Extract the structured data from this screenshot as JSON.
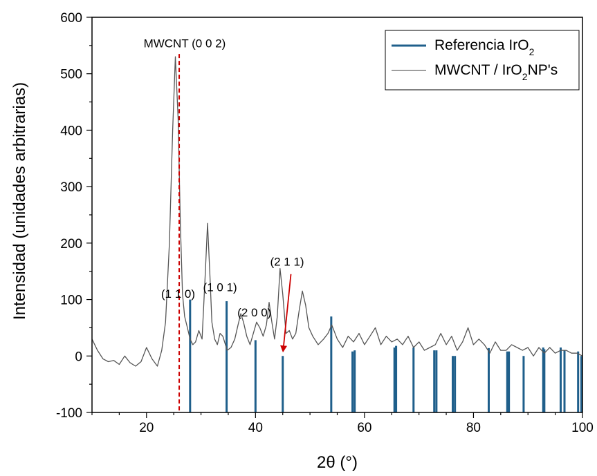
{
  "chart_data": {
    "type": "line",
    "xlabel": "2θ (°)",
    "ylabel": "Intensidad (unidades arbitrarias)",
    "xlim": [
      10,
      100
    ],
    "ylim": [
      -100,
      600
    ],
    "xticks": [
      20,
      40,
      60,
      80,
      100
    ],
    "yticks": [
      -100,
      0,
      100,
      200,
      300,
      400,
      500,
      600
    ],
    "grid": false,
    "legend_position": "top-right",
    "legend": {
      "items": [
        {
          "label_main": "Referencia IrO",
          "label_sub": "2",
          "label_tail": "",
          "color": "#1f5f8b",
          "style": "thick"
        },
        {
          "label_main": "MWCNT / IrO",
          "label_sub": "2",
          "label_tail": "NP's",
          "color": "#7f7f7f",
          "style": "thin"
        }
      ]
    },
    "series": [
      {
        "name": "MWCNT / IrO2NP's",
        "color": "#555555",
        "x": [
          10,
          11,
          12,
          13,
          14,
          15,
          16,
          17,
          18,
          19,
          20,
          21,
          22,
          22.8,
          23.5,
          24.2,
          24.8,
          25.3,
          25.8,
          26.2,
          26.6,
          27.0,
          27.5,
          28.0,
          28.5,
          29.0,
          29.6,
          30.2,
          30.8,
          31.2,
          31.6,
          32.0,
          32.5,
          33.0,
          33.5,
          34.0,
          34.8,
          35.5,
          36.2,
          36.8,
          37.3,
          37.8,
          38.4,
          39.0,
          39.6,
          40.2,
          40.8,
          41.4,
          42.0,
          42.5,
          43.0,
          43.5,
          44.0,
          44.5,
          45.0,
          45.6,
          46.2,
          46.8,
          47.4,
          48.0,
          48.6,
          49.2,
          49.8,
          50.5,
          51.5,
          52.5,
          53.3,
          54.0,
          55.0,
          56.0,
          57.0,
          58.0,
          59.0,
          60.0,
          61.0,
          62.0,
          63.0,
          64.0,
          65.0,
          66.0,
          67.0,
          68.0,
          69.0,
          70.0,
          71.0,
          72.0,
          73.0,
          74.0,
          75.0,
          76.0,
          77.0,
          78.0,
          79.0,
          80.0,
          81.0,
          82.0,
          83.0,
          84.0,
          85.0,
          86.0,
          87.0,
          88.0,
          89.0,
          90.0,
          91.0,
          92.0,
          93.0,
          94.0,
          95.0,
          96.0,
          97.0,
          98.0,
          99.0,
          100.0
        ],
        "y": [
          30,
          10,
          -5,
          -10,
          -8,
          -15,
          0,
          -12,
          -18,
          -10,
          15,
          -5,
          -18,
          10,
          60,
          200,
          400,
          530,
          420,
          240,
          110,
          70,
          50,
          30,
          20,
          25,
          45,
          30,
          150,
          235,
          150,
          60,
          30,
          20,
          40,
          35,
          10,
          15,
          30,
          55,
          75,
          60,
          35,
          20,
          40,
          60,
          50,
          35,
          55,
          95,
          60,
          30,
          70,
          155,
          110,
          40,
          45,
          30,
          40,
          80,
          115,
          90,
          50,
          35,
          20,
          30,
          40,
          55,
          30,
          15,
          35,
          25,
          40,
          20,
          35,
          50,
          20,
          35,
          25,
          30,
          20,
          35,
          15,
          25,
          10,
          15,
          20,
          40,
          20,
          35,
          10,
          25,
          50,
          20,
          30,
          20,
          5,
          25,
          10,
          10,
          20,
          15,
          10,
          15,
          0,
          15,
          5,
          15,
          5,
          10,
          10,
          5,
          5,
          0
        ]
      }
    ],
    "reference": {
      "name": "Referencia IrO2",
      "color": "#1f5f8b",
      "base": -100,
      "peaks": [
        {
          "x": 28.0,
          "y": 100
        },
        {
          "x": 34.7,
          "y": 97
        },
        {
          "x": 40.0,
          "y": 28
        },
        {
          "x": 45.0,
          "y": 0
        },
        {
          "x": 53.9,
          "y": 70
        },
        {
          "x": 57.8,
          "y": 8
        },
        {
          "x": 58.2,
          "y": 10
        },
        {
          "x": 65.5,
          "y": 15
        },
        {
          "x": 65.8,
          "y": 18
        },
        {
          "x": 69.0,
          "y": 15
        },
        {
          "x": 72.8,
          "y": 10
        },
        {
          "x": 73.2,
          "y": 10
        },
        {
          "x": 76.2,
          "y": 0
        },
        {
          "x": 76.6,
          "y": 0
        },
        {
          "x": 82.8,
          "y": 14
        },
        {
          "x": 86.2,
          "y": 8
        },
        {
          "x": 86.5,
          "y": 8
        },
        {
          "x": 89.2,
          "y": 0
        },
        {
          "x": 92.8,
          "y": 15
        },
        {
          "x": 93.0,
          "y": 12
        },
        {
          "x": 96.0,
          "y": 15
        },
        {
          "x": 96.7,
          "y": 10
        },
        {
          "x": 99.2,
          "y": 8
        },
        {
          "x": 99.8,
          "y": 0
        }
      ]
    },
    "marker_line": {
      "x": 26.0,
      "y_top": 535,
      "color": "#cc0000"
    },
    "arrow": {
      "x_from": 46.5,
      "y_from": 145,
      "x_to": 45.1,
      "y_to": 5,
      "color": "#cc0000"
    },
    "annotations": [
      {
        "text": "MWCNT (0 0 2)",
        "x": 27.0,
        "y": 547
      },
      {
        "text": "(1 1 0)",
        "x": 25.8,
        "y": 103
      },
      {
        "text": "(1 0 1)",
        "x": 33.5,
        "y": 115
      },
      {
        "text": "(2 0 0)",
        "x": 39.8,
        "y": 70
      },
      {
        "text": "(2 1 1)",
        "x": 45.8,
        "y": 160
      }
    ]
  }
}
